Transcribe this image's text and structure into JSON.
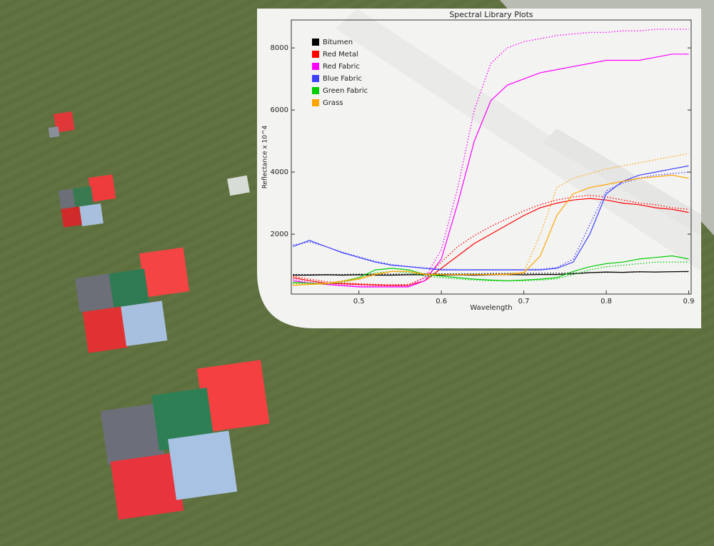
{
  "chart_data": {
    "type": "line",
    "title": "Spectral Library Plots",
    "x_label": "Wavelength",
    "y_label": "Reflectance x 10^4",
    "x": [
      0.42,
      0.44,
      0.46,
      0.48,
      0.5,
      0.52,
      0.54,
      0.56,
      0.58,
      0.6,
      0.62,
      0.64,
      0.66,
      0.68,
      0.7,
      0.72,
      0.74,
      0.76,
      0.78,
      0.8,
      0.82,
      0.84,
      0.86,
      0.88,
      0.9
    ],
    "xlim": [
      0.418,
      0.903
    ],
    "ylim": [
      70,
      8900
    ],
    "xticks": [
      0.5,
      0.6,
      0.7,
      0.8,
      0.9
    ],
    "yticks": [
      2000,
      4000,
      6000,
      8000
    ],
    "legend": "upper left",
    "series": [
      {
        "name": "Bitumen",
        "color": "#000000",
        "values": [
          680,
          680,
          690,
          680,
          690,
          680,
          680,
          690,
          690,
          680,
          690,
          680,
          690,
          700,
          690,
          700,
          700,
          720,
          760,
          780,
          770,
          790,
          780,
          790,
          800
        ],
        "reference_values": [
          700,
          700,
          700,
          700,
          710,
          710,
          710,
          710,
          720,
          720,
          720,
          720,
          730,
          730,
          730,
          740,
          740,
          750,
          760,
          770,
          770,
          780,
          780,
          790,
          790
        ]
      },
      {
        "name": "Red Metal",
        "color": "#ff0000",
        "values": [
          600,
          500,
          420,
          400,
          380,
          360,
          350,
          350,
          500,
          900,
          1300,
          1700,
          2000,
          2300,
          2600,
          2850,
          3000,
          3100,
          3150,
          3100,
          3000,
          2950,
          2850,
          2800,
          2700
        ],
        "reference_values": [
          650,
          550,
          470,
          430,
          400,
          380,
          370,
          380,
          600,
          1100,
          1600,
          1950,
          2250,
          2500,
          2750,
          2950,
          3100,
          3200,
          3250,
          3200,
          3100,
          3000,
          2950,
          2850,
          2800
        ]
      },
      {
        "name": "Red Fabric",
        "color": "#ff00ff",
        "values": [
          500,
          420,
          380,
          340,
          300,
          300,
          300,
          300,
          500,
          1200,
          3000,
          5000,
          6300,
          6800,
          7000,
          7200,
          7300,
          7400,
          7500,
          7600,
          7600,
          7600,
          7700,
          7800,
          7800
        ],
        "reference_values": [
          550,
          450,
          400,
          360,
          330,
          320,
          320,
          330,
          600,
          1500,
          3500,
          6000,
          7500,
          8000,
          8200,
          8300,
          8400,
          8450,
          8500,
          8500,
          8550,
          8550,
          8600,
          8600,
          8600
        ]
      },
      {
        "name": "Blue Fabric",
        "color": "#4040ff",
        "values": [
          1600,
          1800,
          1600,
          1400,
          1250,
          1100,
          1000,
          950,
          900,
          850,
          850,
          850,
          850,
          850,
          850,
          850,
          900,
          1100,
          2000,
          3300,
          3700,
          3900,
          4000,
          4100,
          4200
        ],
        "reference_values": [
          1650,
          1750,
          1600,
          1420,
          1270,
          1120,
          1020,
          960,
          910,
          870,
          860,
          860,
          860,
          860,
          860,
          870,
          920,
          1200,
          2300,
          3400,
          3650,
          3800,
          3900,
          3950,
          4000
        ]
      },
      {
        "name": "Green Fabric",
        "color": "#00cc00",
        "values": [
          450,
          420,
          400,
          480,
          600,
          850,
          900,
          850,
          700,
          650,
          600,
          550,
          520,
          500,
          520,
          550,
          600,
          800,
          950,
          1050,
          1100,
          1200,
          1250,
          1300,
          1200
        ],
        "reference_values": [
          420,
          400,
          390,
          450,
          560,
          750,
          800,
          760,
          650,
          600,
          560,
          520,
          500,
          490,
          500,
          520,
          560,
          700,
          850,
          950,
          1000,
          1050,
          1100,
          1100,
          1100
        ]
      },
      {
        "name": "Grass",
        "color": "#ffa500",
        "values": [
          350,
          380,
          400,
          480,
          550,
          700,
          800,
          800,
          700,
          700,
          700,
          700,
          700,
          700,
          750,
          1300,
          2600,
          3300,
          3500,
          3600,
          3700,
          3800,
          3850,
          3900,
          3800
        ],
        "reference_values": [
          380,
          400,
          420,
          500,
          580,
          720,
          800,
          800,
          720,
          700,
          700,
          700,
          700,
          720,
          780,
          2000,
          3500,
          3800,
          3950,
          4100,
          4200,
          4300,
          4400,
          4500,
          4600
        ]
      }
    ]
  }
}
